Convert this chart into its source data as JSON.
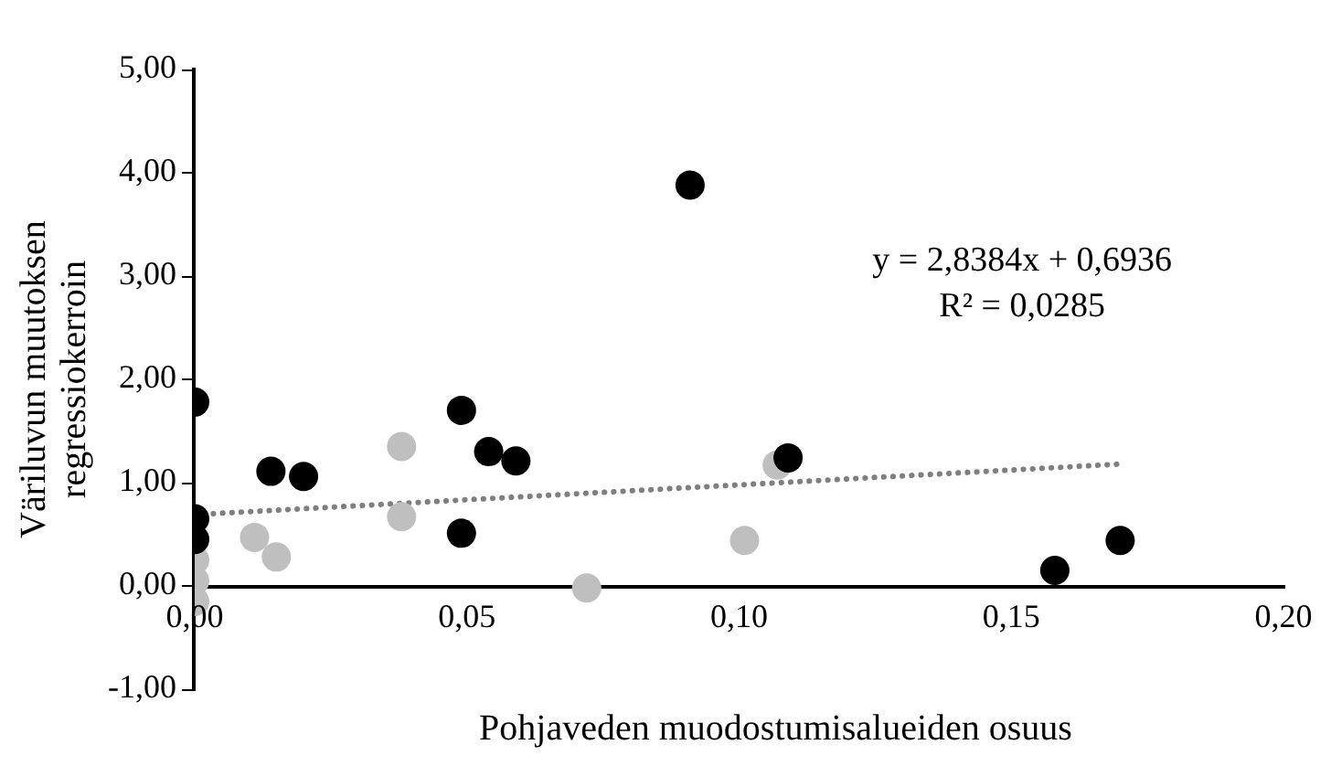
{
  "chart_data": {
    "type": "scatter",
    "xlabel": "Pohjaveden muodostumisalueiden osuus",
    "ylabel": "Väriluvun muutoksen regressiokerroin",
    "annotations": [
      "y = 2,8384x + 0,6936",
      "R² = 0,0285"
    ],
    "series": [
      {
        "color": "#000000",
        "x": [
          0,
          0,
          0,
          0.014,
          0.02,
          0.049,
          0.049,
          0.054,
          0.059,
          0.091,
          0.109,
          0.158,
          0.17
        ],
        "values": [
          1.78,
          0.65,
          0.45,
          1.11,
          1.06,
          1.7,
          0.51,
          1.3,
          1.21,
          3.88,
          1.24,
          0.15,
          0.44
        ]
      },
      {
        "color": "#bfbfbf",
        "x": [
          0,
          0,
          0,
          0.011,
          0.015,
          0.038,
          0.038,
          0.072,
          0.101,
          0.107
        ],
        "values": [
          0.25,
          0.05,
          -0.15,
          0.47,
          0.28,
          1.35,
          0.67,
          -0.02,
          0.44,
          1.17
        ]
      },
      {
        "type": "line",
        "color": "#7f7f7f",
        "line_style": "dotted",
        "marker": "none",
        "x": [
          0,
          0.17
        ],
        "values": [
          0.69,
          1.18
        ]
      }
    ],
    "marker": "circle",
    "xlim": [
      0,
      0.2
    ],
    "xticks": [
      {
        "value": 0,
        "label": "0,00"
      },
      {
        "value": 0.05,
        "label": "0,05"
      },
      {
        "value": 0.1,
        "label": "0,10"
      },
      {
        "value": 0.15,
        "label": "0,15"
      },
      {
        "value": 0.2,
        "label": "0,20"
      }
    ],
    "ylim": [
      -1,
      5
    ],
    "yticks": [
      {
        "value": -1,
        "label": "-1,00"
      },
      {
        "value": 0,
        "label": "0,00"
      },
      {
        "value": 1,
        "label": "1,00"
      },
      {
        "value": 2,
        "label": "2,00"
      },
      {
        "value": 3,
        "label": "3,00"
      },
      {
        "value": 4,
        "label": "4,00"
      },
      {
        "value": 5,
        "label": "5,00"
      }
    ],
    "grid": false,
    "legend": false
  }
}
